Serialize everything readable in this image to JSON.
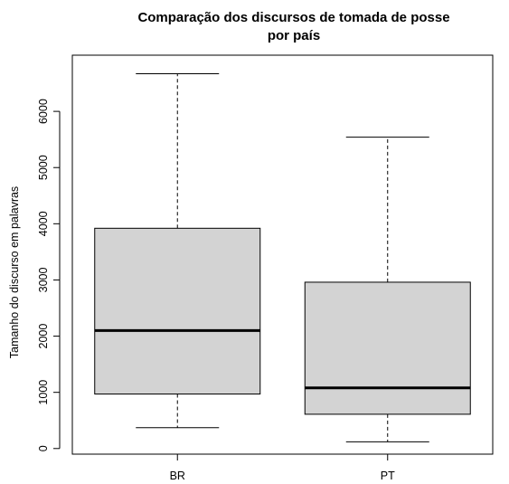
{
  "chart_data": {
    "type": "box",
    "title_line1": "Comparação dos discursos de tomada de posse",
    "title_line2": "por país",
    "xlabel": "",
    "ylabel": "Tamanho do discurso em palavras",
    "ylim": [
      -100,
      7000
    ],
    "yticks": [
      "0",
      "1000",
      "2000",
      "3000",
      "4000",
      "5000",
      "6000"
    ],
    "categories": [
      "BR",
      "PT"
    ],
    "boxes": [
      {
        "name": "BR",
        "min": 370,
        "q1": 970,
        "median": 2100,
        "q3": 3920,
        "max": 6670
      },
      {
        "name": "PT",
        "min": 120,
        "q1": 610,
        "median": 1080,
        "q3": 2960,
        "max": 5540
      }
    ],
    "box_color": "#d3d3d3",
    "grid": false
  }
}
